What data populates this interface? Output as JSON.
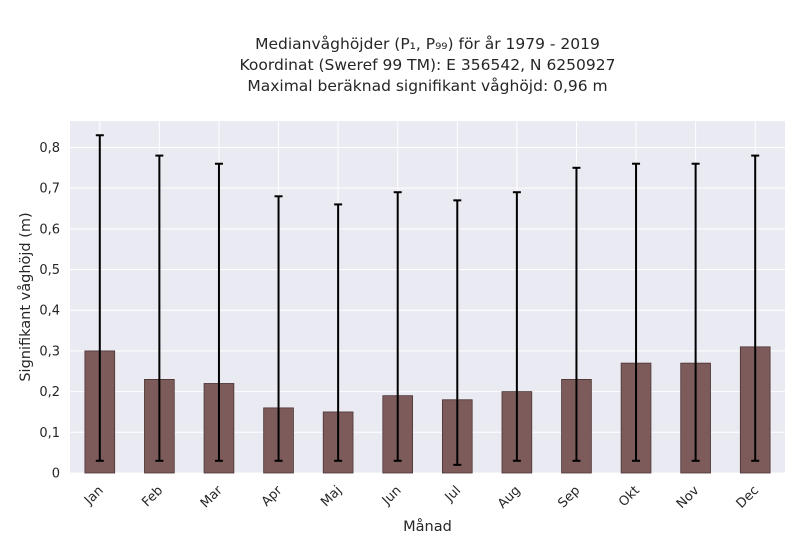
{
  "chart_data": {
    "type": "bar",
    "title_lines": [
      "Medianvåghöjder (P₁, P₉₉) för år 1979 - 2019",
      "Koordinat (Sweref 99 TM): E 356542, N 6250927",
      "Maximal beräknad signifikant våghöjd: 0,96 m"
    ],
    "xlabel": "Månad",
    "ylabel": "Signifikant våghöjd (m)",
    "categories": [
      "Jan",
      "Feb",
      "Mar",
      "Apr",
      "Maj",
      "Jun",
      "Jul",
      "Aug",
      "Sep",
      "Okt",
      "Nov",
      "Dec"
    ],
    "values": [
      0.3,
      0.23,
      0.22,
      0.16,
      0.15,
      0.19,
      0.18,
      0.2,
      0.23,
      0.27,
      0.27,
      0.31
    ],
    "p1": [
      0.03,
      0.03,
      0.03,
      0.03,
      0.03,
      0.03,
      0.02,
      0.03,
      0.03,
      0.03,
      0.03,
      0.03
    ],
    "p99": [
      0.83,
      0.78,
      0.76,
      0.68,
      0.66,
      0.69,
      0.67,
      0.69,
      0.75,
      0.76,
      0.76,
      0.78
    ],
    "ylim": [
      0,
      0.865
    ],
    "yticks": [
      0,
      0.1,
      0.2,
      0.3,
      0.4,
      0.5,
      0.6,
      0.7,
      0.8
    ],
    "ytick_labels": [
      "0",
      "0,1",
      "0,2",
      "0,3",
      "0,4",
      "0,5",
      "0,6",
      "0,7",
      "0,8"
    ],
    "grid": true,
    "colors": {
      "bar": "#7d5b5b",
      "bar_edge": "#4a3434",
      "errorbar": "#000000",
      "plot_bg": "#eaeaf2",
      "grid": "#ffffff"
    }
  }
}
